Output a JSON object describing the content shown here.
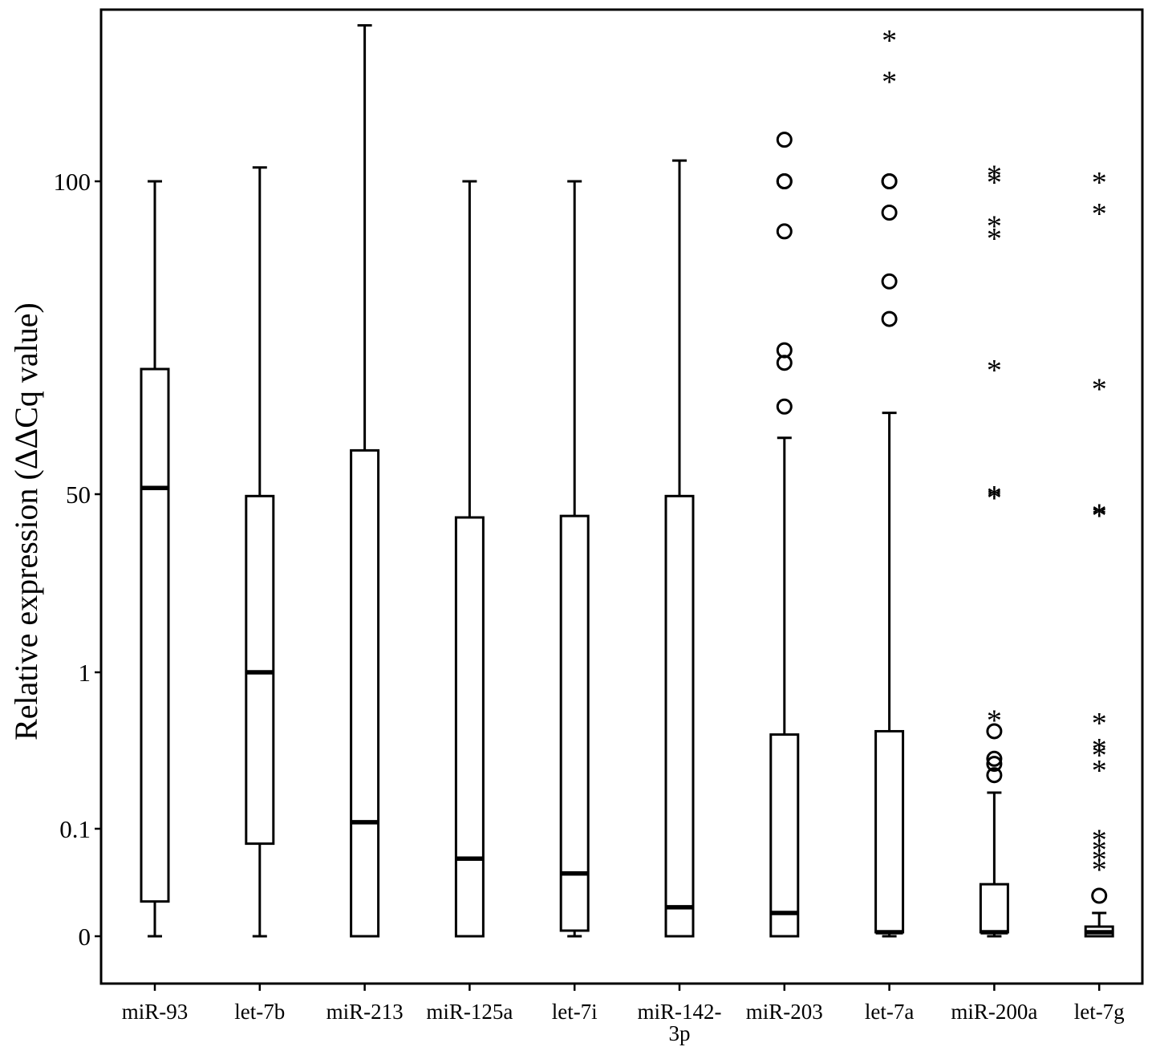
{
  "chart_data": {
    "type": "box",
    "title": "",
    "xlabel": "",
    "ylabel": "Relative expression (ΔΔCq value)",
    "y_scale": "categorical-log-like",
    "y_ticks": [
      {
        "label": "0",
        "value": 0
      },
      {
        "label": "0.1",
        "value": 0.1
      },
      {
        "label": "1",
        "value": 1
      },
      {
        "label": "50",
        "value": 50
      },
      {
        "label": "100",
        "value": 100
      }
    ],
    "categories": [
      {
        "label": "miR-93",
        "lines": [
          "miR-93"
        ]
      },
      {
        "label": "let-7b",
        "lines": [
          "let-7b"
        ]
      },
      {
        "label": "miR-213",
        "lines": [
          "miR-213"
        ]
      },
      {
        "label": "miR-125a",
        "lines": [
          "miR-125a"
        ]
      },
      {
        "label": "let-7i",
        "lines": [
          "let-7i"
        ]
      },
      {
        "label": "miR-142-3p",
        "lines": [
          "miR-142-",
          "3p"
        ]
      },
      {
        "label": "miR-203",
        "lines": [
          "miR-203"
        ]
      },
      {
        "label": "let-7a",
        "lines": [
          "let-7a"
        ]
      },
      {
        "label": "miR-200a",
        "lines": [
          "miR-200a"
        ]
      },
      {
        "label": "let-7g",
        "lines": [
          "let-7g"
        ]
      }
    ],
    "boxes": [
      {
        "whisker_low": 0,
        "q1": 0.03,
        "median": 51,
        "q3": 70,
        "whisker_high": 100,
        "outliers": [],
        "extremes": []
      },
      {
        "whisker_low": 0,
        "q1": 0.085,
        "median": 1,
        "q3": 48,
        "whisker_high": 104,
        "outliers": [],
        "extremes": []
      },
      {
        "whisker_low": 0,
        "q1": 0,
        "median": 0.11,
        "q3": 57,
        "whisker_high": 145,
        "outliers": [],
        "extremes": []
      },
      {
        "whisker_low": 0,
        "q1": 0,
        "median": 0.07,
        "q3": 30,
        "whisker_high": 100,
        "outliers": [],
        "extremes": []
      },
      {
        "whisker_low": 0,
        "q1": 0.005,
        "median": 0.055,
        "q3": 31,
        "whisker_high": 100,
        "outliers": [],
        "extremes": []
      },
      {
        "whisker_low": 0,
        "q1": 0,
        "median": 0.025,
        "q3": 48,
        "whisker_high": 106,
        "outliers": [],
        "extremes": []
      },
      {
        "whisker_low": 0,
        "q1": 0,
        "median": 0.02,
        "q3": 0.4,
        "whisker_high": 59,
        "outliers": [
          112,
          100,
          100,
          92,
          73,
          71,
          64
        ],
        "extremes": []
      },
      {
        "whisker_low": 0,
        "q1": 0.003,
        "median": 0.003,
        "q3": 0.42,
        "whisker_high": 63,
        "outliers": [
          100,
          100,
          95,
          84,
          78
        ],
        "extremes": [
          141,
          129
        ]
      },
      {
        "whisker_low": 0,
        "q1": 0.003,
        "median": 0.003,
        "q3": 0.045,
        "whisker_high": 0.17,
        "outliers": [
          0.42,
          0.28,
          0.26,
          0.22
        ],
        "extremes": [
          102,
          100,
          93,
          91,
          70,
          49,
          47,
          0.5
        ]
      },
      {
        "whisker_low": 0,
        "q1": 0,
        "median": 0.003,
        "q3": 0.01,
        "whisker_high": 0.02,
        "outliers": [
          0.035
        ],
        "extremes": [
          100,
          95,
          67,
          33,
          32,
          0.48,
          0.33,
          0.3,
          0.24,
          0.09,
          0.08,
          0.07,
          0.06
        ]
      }
    ],
    "legend": "none",
    "grid": false
  }
}
